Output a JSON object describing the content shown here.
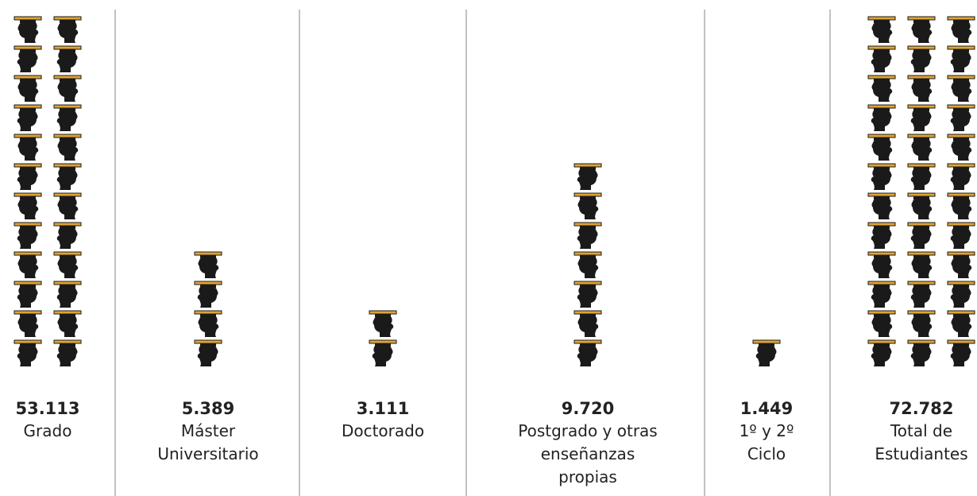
{
  "chart_data": {
    "type": "pictogram",
    "categories": [
      "Grado",
      "Máster Universitario",
      "Doctorado",
      "Postgrado y otras enseñanzas propias",
      "1º y 2º Ciclo",
      "Total de Estudiantes"
    ],
    "values": [
      53113,
      5389,
      3111,
      9720,
      1449,
      72782
    ],
    "value_labels": [
      "53.113",
      "5.389",
      "3.111",
      "9.720",
      "1.449",
      "72.782"
    ],
    "icon_counts": [
      24,
      4,
      2,
      7,
      1,
      36
    ],
    "color": "#1a1a1a",
    "accent_color": "#e0a434"
  }
}
